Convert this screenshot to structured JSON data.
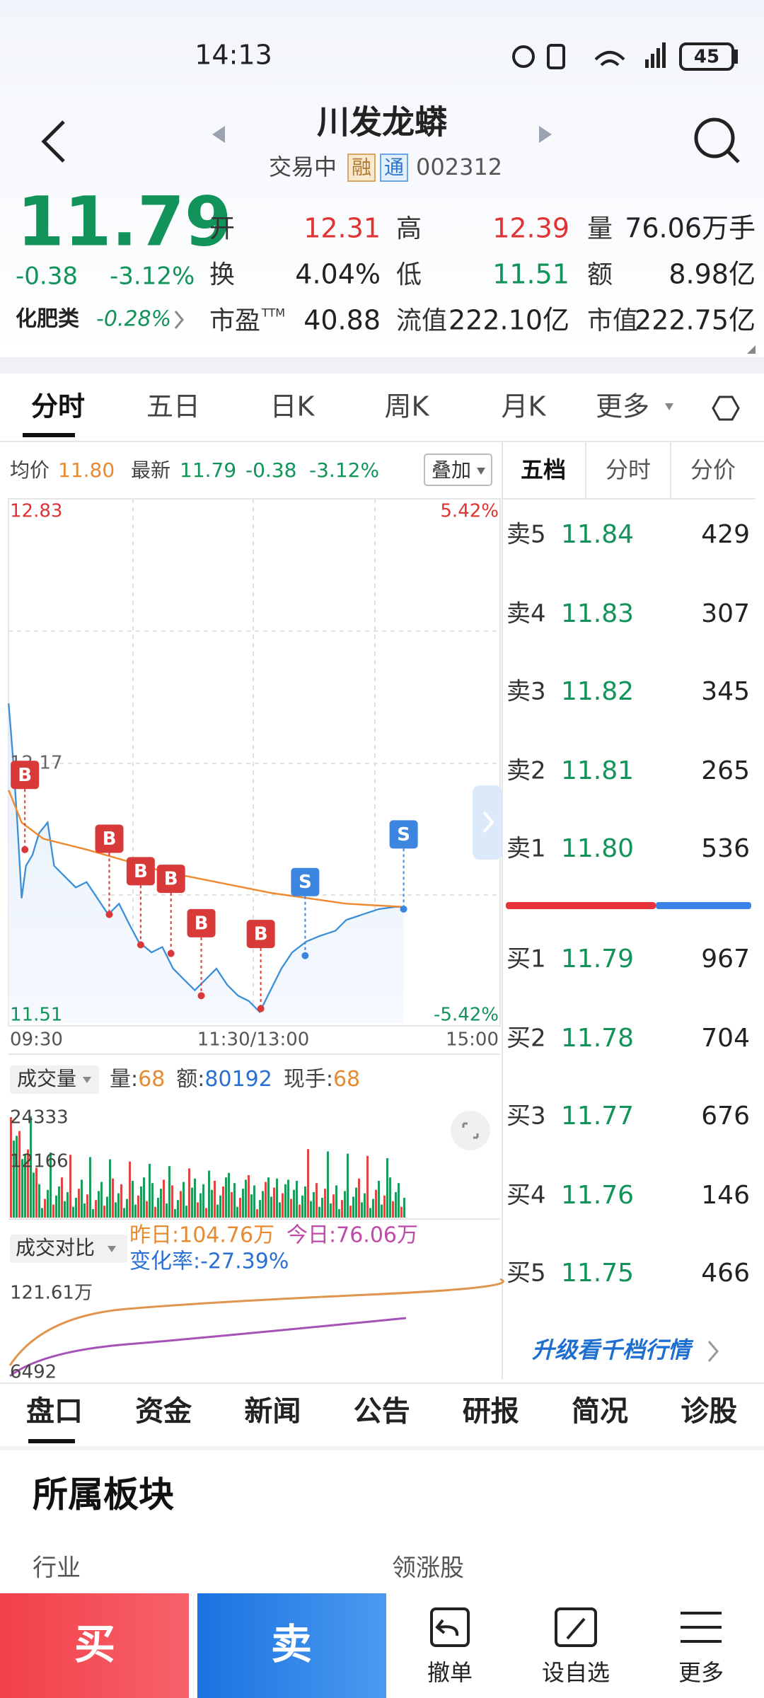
{
  "status_bar": {
    "time": "14:13",
    "battery": "45"
  },
  "header": {
    "title": "川发龙蟒",
    "status": "交易中",
    "tags": [
      "融",
      "通"
    ],
    "code": "002312"
  },
  "quote": {
    "price": "11.79",
    "change": "-0.38",
    "change_pct": "-3.12%",
    "sector": "化肥类",
    "sector_change": "-0.28%",
    "fields": [
      {
        "label": "开",
        "value": "12.31"
      },
      {
        "label": "高",
        "value": "12.39"
      },
      {
        "label": "量",
        "value": "76.06万手"
      },
      {
        "label": "换",
        "value": "4.04%"
      },
      {
        "label": "低",
        "value": "11.51"
      },
      {
        "label": "额",
        "value": "8.98亿"
      },
      {
        "label": "市盈",
        "sup": "TTM",
        "value": "40.88"
      },
      {
        "label": "流值",
        "value": "222.10亿"
      },
      {
        "label": "市值",
        "value": "222.75亿"
      }
    ]
  },
  "chart_tabs": [
    "分时",
    "五日",
    "日K",
    "周K",
    "月K",
    "更多"
  ],
  "info": {
    "avg_label": "均价",
    "avg": "11.80",
    "latest_label": "最新",
    "latest": "11.79",
    "change": "-0.38",
    "change_pct": "-3.12%",
    "overlay": "叠加"
  },
  "book_tabs": [
    "五档",
    "分时",
    "分价"
  ],
  "chart": {
    "high": "12.83",
    "high_pct": "5.42%",
    "prev_close": "12.17",
    "low": "11.51",
    "low_pct": "-5.42%",
    "times": [
      "09:30",
      "11:30/13:00",
      "15:00"
    ],
    "markers": [
      "B",
      "B",
      "B",
      "B",
      "B",
      "B",
      "S",
      "S"
    ]
  },
  "order_book": {
    "asks": [
      {
        "label": "卖5",
        "price": "11.84",
        "volume": "429"
      },
      {
        "label": "卖4",
        "price": "11.83",
        "volume": "307"
      },
      {
        "label": "卖3",
        "price": "11.82",
        "volume": "345"
      },
      {
        "label": "卖2",
        "price": "11.81",
        "volume": "265"
      },
      {
        "label": "卖1",
        "price": "11.80",
        "volume": "536"
      }
    ],
    "bids": [
      {
        "label": "买1",
        "price": "11.79",
        "volume": "967"
      },
      {
        "label": "买2",
        "price": "11.78",
        "volume": "704"
      },
      {
        "label": "买3",
        "price": "11.77",
        "volume": "676"
      },
      {
        "label": "买4",
        "price": "11.76",
        "volume": "146"
      },
      {
        "label": "买5",
        "price": "11.75",
        "volume": "466"
      }
    ]
  },
  "volume": {
    "label": "成交量",
    "items": [
      {
        "label": "量:",
        "value": "68"
      },
      {
        "label": "额:",
        "value": "80192"
      },
      {
        "label": "现手:",
        "value": "68"
      }
    ],
    "max": "24333",
    "mid": "12166"
  },
  "compare": {
    "label": "成交对比",
    "yesterday": "昨日:104.76万",
    "today": "今日:76.06万",
    "change": "变化率:-27.39%",
    "max": "121.61万",
    "min": "6492"
  },
  "upgrade": "升级看千档行情",
  "bottom_tabs": [
    "盘口",
    "资金",
    "新闻",
    "公告",
    "研报",
    "简况",
    "诊股"
  ],
  "section": {
    "title": "所属板块",
    "industry": "行业",
    "leader": "领涨股"
  },
  "actions": {
    "buy": "买",
    "sell": "卖",
    "tools": [
      "撤单",
      "设自选",
      "更多"
    ]
  }
}
